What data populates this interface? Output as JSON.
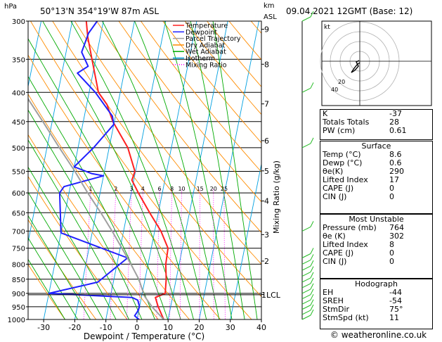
{
  "header": {
    "units_hpa": "hPa",
    "location": "50°13'N  354°19'W  87m  ASL",
    "units_km": "km",
    "units_asl": "ASL",
    "datetime": "09.04.2021  12GMT  (Base: 12)"
  },
  "legend": [
    {
      "label": "Temperature",
      "color": "#ff2020",
      "dash": ""
    },
    {
      "label": "Dewpoint",
      "color": "#2020ff",
      "dash": ""
    },
    {
      "label": "Parcel Trajectory",
      "color": "#a0a0a0",
      "dash": ""
    },
    {
      "label": "Dry Adiabat",
      "color": "#ff8c00",
      "dash": ""
    },
    {
      "label": "Wet Adiabat",
      "color": "#00aa00",
      "dash": ""
    },
    {
      "label": "Isotherm",
      "color": "#00a0e0",
      "dash": ""
    },
    {
      "label": "Mixing Ratio",
      "color": "#ff00ff",
      "dash": "1,2"
    }
  ],
  "axes": {
    "xlabel": "Dewpoint / Temperature (°C)",
    "mixing_ylabel": "Mixing Ratio (g/kg)",
    "lcl_label": "1LCL"
  },
  "chart_data": {
    "type": "line",
    "title": "",
    "xlabel": "Dewpoint / Temperature (°C)",
    "ylabel": "hPa",
    "xlim": [
      -35,
      40
    ],
    "ylim": [
      1000,
      300
    ],
    "x_ticks": [
      -30,
      -20,
      -10,
      0,
      10,
      20,
      30,
      40
    ],
    "pressure_levels": [
      300,
      350,
      400,
      450,
      500,
      550,
      600,
      650,
      700,
      750,
      800,
      850,
      900,
      950,
      1000
    ],
    "height_ticks": [
      {
        "km": "9",
        "p": 310
      },
      {
        "km": "8",
        "p": 357
      },
      {
        "km": "7",
        "p": 419
      },
      {
        "km": "6",
        "p": 486
      },
      {
        "km": "5",
        "p": 549
      },
      {
        "km": "4",
        "p": 620
      },
      {
        "km": "3",
        "p": 710
      },
      {
        "km": "2",
        "p": 790
      },
      {
        "km": "1",
        "p": 904
      }
    ],
    "mixing_ratio_labels": [
      "1",
      "2",
      "3",
      "4",
      "6",
      "8",
      "10",
      "15",
      "20",
      "25"
    ],
    "series": [
      {
        "name": "Temperature",
        "color": "#ff2020",
        "points": [
          [
            8.6,
            1000
          ],
          [
            6.0,
            950
          ],
          [
            4.5,
            915
          ],
          [
            7.4,
            900
          ],
          [
            6.8,
            850
          ],
          [
            5.7,
            800
          ],
          [
            5.4,
            750
          ],
          [
            2.0,
            700
          ],
          [
            -2.8,
            650
          ],
          [
            -7.7,
            600
          ],
          [
            -10.6,
            570
          ],
          [
            -10.2,
            550
          ],
          [
            -14.0,
            500
          ],
          [
            -20.5,
            450
          ],
          [
            -23.5,
            420
          ],
          [
            -27.0,
            400
          ],
          [
            -31.2,
            350
          ],
          [
            -34.0,
            320
          ],
          [
            -35.5,
            300
          ]
        ]
      },
      {
        "name": "Dewpoint",
        "color": "#2020ff",
        "points": [
          [
            0.6,
            1000
          ],
          [
            -1.0,
            985
          ],
          [
            -0.4,
            970
          ],
          [
            0.0,
            950
          ],
          [
            -1.0,
            925
          ],
          [
            -3.0,
            915
          ],
          [
            -30.0,
            900
          ],
          [
            -15.0,
            860
          ],
          [
            -7.0,
            780
          ],
          [
            -30.0,
            705
          ],
          [
            -33.0,
            600
          ],
          [
            -32.0,
            585
          ],
          [
            -20.0,
            560
          ],
          [
            -24.0,
            555
          ],
          [
            -30.0,
            540
          ],
          [
            -25.0,
            500
          ],
          [
            -20.0,
            455
          ],
          [
            -21.0,
            440
          ],
          [
            -28.0,
            400
          ],
          [
            -35.0,
            370
          ],
          [
            -32.0,
            360
          ],
          [
            -35.0,
            340
          ],
          [
            -34.0,
            315
          ],
          [
            -32.0,
            300
          ]
        ]
      },
      {
        "name": "Parcel Trajectory",
        "color": "#a0a0a0",
        "points": [
          [
            8.6,
            1000
          ],
          [
            4.0,
            950
          ],
          [
            0.9,
            910
          ],
          [
            -2.0,
            850
          ],
          [
            -5.5,
            800
          ],
          [
            -9.4,
            750
          ],
          [
            -13.7,
            700
          ],
          [
            -18.5,
            650
          ],
          [
            -24.0,
            600
          ],
          [
            -29.5,
            550
          ],
          [
            -36.0,
            500
          ],
          [
            -43.0,
            450
          ],
          [
            -51.0,
            400
          ],
          [
            -59.0,
            350
          ],
          [
            -68.0,
            300
          ]
        ]
      }
    ]
  },
  "hodograph": {
    "label": "kt",
    "ring_labels": [
      "20",
      "40"
    ]
  },
  "wind_barb_color": "#22bb22",
  "indices": [
    {
      "label": "K",
      "value": "-37"
    },
    {
      "label": "Totals Totals",
      "value": "28"
    },
    {
      "label": "PW (cm)",
      "value": "0.61"
    }
  ],
  "surface": {
    "title": "Surface",
    "rows": [
      {
        "label": "Temp (°C)",
        "value": "8.6"
      },
      {
        "label": "Dewp (°C)",
        "value": "0.6"
      },
      {
        "label": "θe(K)",
        "value": "290"
      },
      {
        "label": "Lifted Index",
        "value": "17"
      },
      {
        "label": "CAPE (J)",
        "value": "0"
      },
      {
        "label": "CIN (J)",
        "value": "0"
      }
    ]
  },
  "most_unstable": {
    "title": "Most Unstable",
    "rows": [
      {
        "label": "Pressure (mb)",
        "value": "764"
      },
      {
        "label": "θe (K)",
        "value": "302"
      },
      {
        "label": "Lifted Index",
        "value": "8"
      },
      {
        "label": "CAPE (J)",
        "value": "0"
      },
      {
        "label": "CIN (J)",
        "value": "0"
      }
    ]
  },
  "hodograph_table": {
    "title": "Hodograph",
    "rows": [
      {
        "label": "EH",
        "value": "-44"
      },
      {
        "label": "SREH",
        "value": "-54"
      },
      {
        "label": "StmDir",
        "value": "75°"
      },
      {
        "label": "StmSpd (kt)",
        "value": "11"
      }
    ]
  },
  "credit": "© weatheronline.co.uk"
}
